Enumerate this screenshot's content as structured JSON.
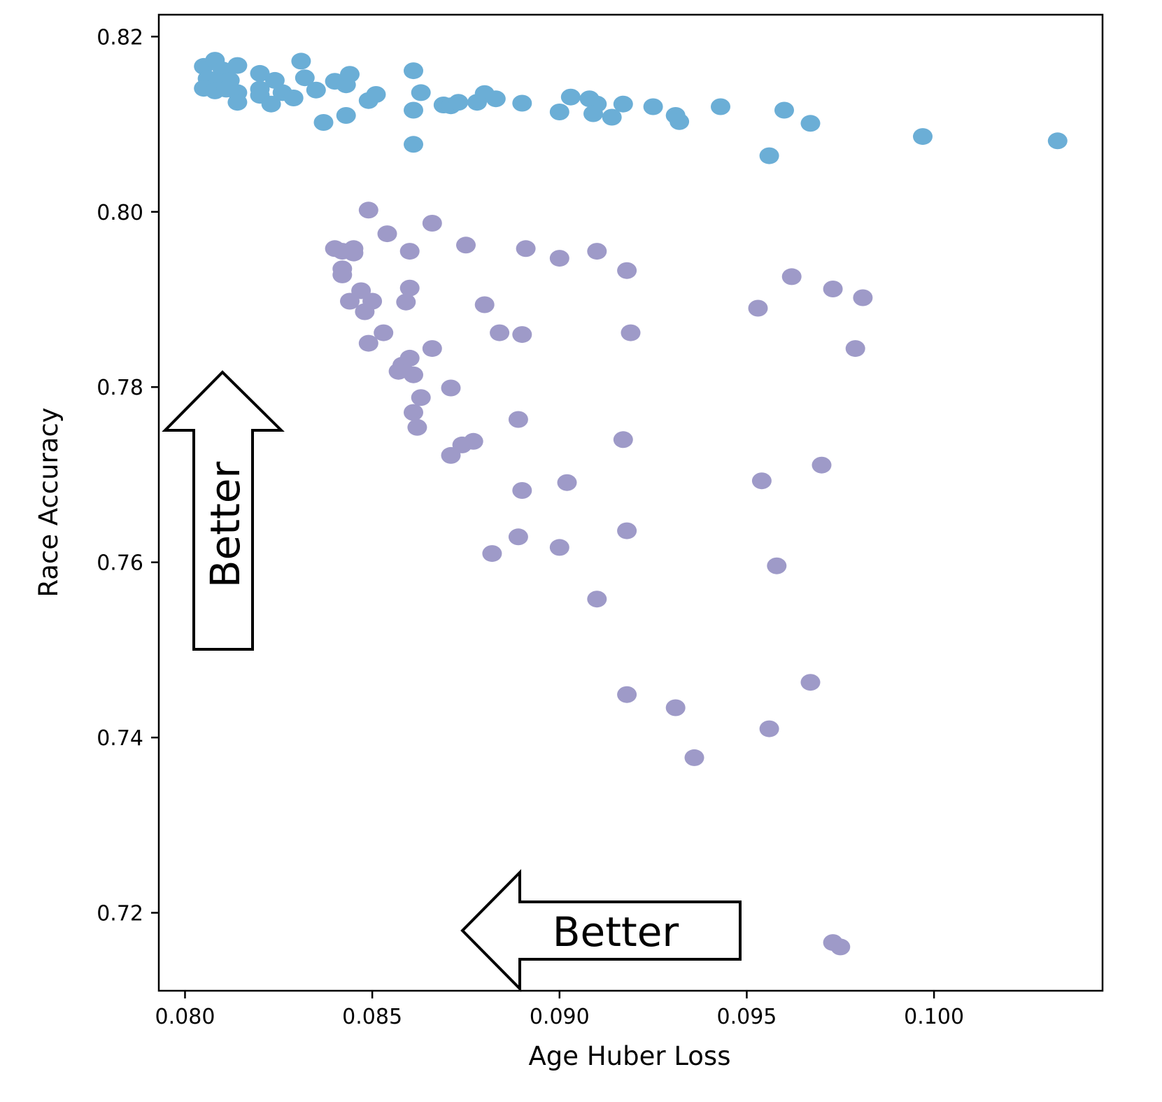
{
  "chart_data": {
    "type": "scatter",
    "title": "",
    "xlabel": "Age Huber Loss",
    "ylabel": "Race Accuracy",
    "xlim": [
      0.0793,
      0.1045
    ],
    "ylim": [
      0.7111,
      0.8225
    ],
    "xticks": [
      "0.080",
      "0.085",
      "0.090",
      "0.095",
      "0.100"
    ],
    "yticks": [
      "0.72",
      "0.74",
      "0.76",
      "0.78",
      "0.80",
      "0.82"
    ],
    "grid": false,
    "legend": "none",
    "annotations": [
      {
        "text": "Better",
        "direction": "up"
      },
      {
        "text": "Better",
        "direction": "left"
      }
    ],
    "series": [
      {
        "color": "#6baed6",
        "points": [
          [
            0.0805,
            0.8166
          ],
          [
            0.0808,
            0.8173
          ],
          [
            0.081,
            0.8162
          ],
          [
            0.0814,
            0.8167
          ],
          [
            0.0806,
            0.8152
          ],
          [
            0.0809,
            0.8148
          ],
          [
            0.0812,
            0.815
          ],
          [
            0.0805,
            0.8141
          ],
          [
            0.0808,
            0.8138
          ],
          [
            0.0811,
            0.814
          ],
          [
            0.0814,
            0.8136
          ],
          [
            0.0814,
            0.8125
          ],
          [
            0.082,
            0.8158
          ],
          [
            0.082,
            0.814
          ],
          [
            0.082,
            0.8133
          ],
          [
            0.0824,
            0.815
          ],
          [
            0.0823,
            0.8123
          ],
          [
            0.0826,
            0.8136
          ],
          [
            0.0829,
            0.813
          ],
          [
            0.0831,
            0.8172
          ],
          [
            0.0832,
            0.8153
          ],
          [
            0.0835,
            0.8139
          ],
          [
            0.0837,
            0.8102
          ],
          [
            0.084,
            0.8149
          ],
          [
            0.0843,
            0.8145
          ],
          [
            0.0844,
            0.8157
          ],
          [
            0.0843,
            0.811
          ],
          [
            0.0849,
            0.8127
          ],
          [
            0.0851,
            0.8134
          ],
          [
            0.0861,
            0.8161
          ],
          [
            0.0863,
            0.8136
          ],
          [
            0.0861,
            0.8116
          ],
          [
            0.0861,
            0.8077
          ],
          [
            0.0869,
            0.8122
          ],
          [
            0.0871,
            0.8121
          ],
          [
            0.0873,
            0.8125
          ],
          [
            0.0878,
            0.8125
          ],
          [
            0.088,
            0.8135
          ],
          [
            0.0883,
            0.8129
          ],
          [
            0.089,
            0.8124
          ],
          [
            0.09,
            0.8114
          ],
          [
            0.0903,
            0.8131
          ],
          [
            0.0908,
            0.8129
          ],
          [
            0.091,
            0.8123
          ],
          [
            0.0909,
            0.8112
          ],
          [
            0.0914,
            0.8108
          ],
          [
            0.0917,
            0.8123
          ],
          [
            0.0925,
            0.812
          ],
          [
            0.0931,
            0.811
          ],
          [
            0.0932,
            0.8103
          ],
          [
            0.0943,
            0.812
          ],
          [
            0.0956,
            0.8064
          ],
          [
            0.096,
            0.8116
          ],
          [
            0.0967,
            0.8101
          ],
          [
            0.0997,
            0.8086
          ],
          [
            0.1033,
            0.8081
          ]
        ]
      },
      {
        "color": "#9e9ac8",
        "points": [
          [
            0.0849,
            0.8002
          ],
          [
            0.0854,
            0.7975
          ],
          [
            0.0866,
            0.7987
          ],
          [
            0.084,
            0.7958
          ],
          [
            0.0842,
            0.7955
          ],
          [
            0.0845,
            0.7958
          ],
          [
            0.0845,
            0.7953
          ],
          [
            0.086,
            0.7955
          ],
          [
            0.0875,
            0.7962
          ],
          [
            0.0891,
            0.7958
          ],
          [
            0.09,
            0.7947
          ],
          [
            0.091,
            0.7955
          ],
          [
            0.0918,
            0.7933
          ],
          [
            0.0842,
            0.7935
          ],
          [
            0.0842,
            0.7928
          ],
          [
            0.0847,
            0.791
          ],
          [
            0.0844,
            0.7898
          ],
          [
            0.085,
            0.7898
          ],
          [
            0.0848,
            0.7886
          ],
          [
            0.086,
            0.7913
          ],
          [
            0.0859,
            0.7897
          ],
          [
            0.088,
            0.7894
          ],
          [
            0.0884,
            0.7862
          ],
          [
            0.089,
            0.786
          ],
          [
            0.0919,
            0.7862
          ],
          [
            0.0953,
            0.789
          ],
          [
            0.0962,
            0.7926
          ],
          [
            0.0973,
            0.7912
          ],
          [
            0.0981,
            0.7902
          ],
          [
            0.0979,
            0.7844
          ],
          [
            0.0853,
            0.7862
          ],
          [
            0.0849,
            0.785
          ],
          [
            0.0866,
            0.7844
          ],
          [
            0.086,
            0.7833
          ],
          [
            0.0858,
            0.7825
          ],
          [
            0.0857,
            0.7818
          ],
          [
            0.0861,
            0.7814
          ],
          [
            0.0863,
            0.7788
          ],
          [
            0.0871,
            0.7799
          ],
          [
            0.0861,
            0.7771
          ],
          [
            0.0862,
            0.7754
          ],
          [
            0.0889,
            0.7763
          ],
          [
            0.0917,
            0.774
          ],
          [
            0.0877,
            0.7738
          ],
          [
            0.0874,
            0.7734
          ],
          [
            0.0871,
            0.7722
          ],
          [
            0.097,
            0.7711
          ],
          [
            0.0954,
            0.7693
          ],
          [
            0.0902,
            0.7691
          ],
          [
            0.089,
            0.7682
          ],
          [
            0.0918,
            0.7636
          ],
          [
            0.0889,
            0.7629
          ],
          [
            0.0882,
            0.761
          ],
          [
            0.09,
            0.7617
          ],
          [
            0.0958,
            0.7596
          ],
          [
            0.091,
            0.7558
          ],
          [
            0.0967,
            0.7463
          ],
          [
            0.0918,
            0.7449
          ],
          [
            0.0931,
            0.7434
          ],
          [
            0.0956,
            0.741
          ],
          [
            0.0936,
            0.7377
          ],
          [
            0.0973,
            0.7166
          ],
          [
            0.0975,
            0.7161
          ]
        ]
      }
    ]
  }
}
